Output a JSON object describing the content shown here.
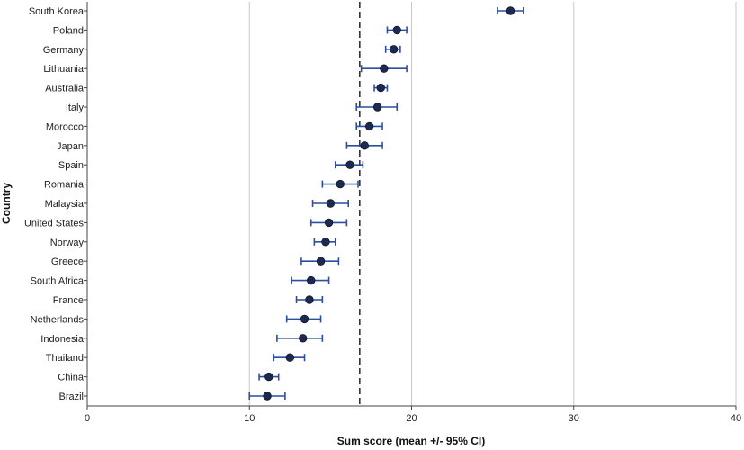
{
  "chart_data": {
    "type": "scatter",
    "xlabel": "Sum score (mean +/- 95% CI)",
    "ylabel": "Country",
    "xlim": [
      0,
      40
    ],
    "xticks": [
      0,
      10,
      20,
      30,
      40
    ],
    "grid": "vertical",
    "reference_line": 16.8,
    "colors": {
      "marker": "#1c2a4f",
      "errorbar": "#2b4ea0",
      "grid": "#c8c8c8",
      "reference": "#333333"
    },
    "categories": [
      "South Korea",
      "Poland",
      "Germany",
      "Lithuania",
      "Australia",
      "Italy",
      "Morocco",
      "Japan",
      "Spain",
      "Romania",
      "Malaysia",
      "United States",
      "Norway",
      "Greece",
      "South Africa",
      "France",
      "Netherlands",
      "Indonesia",
      "Thailand",
      "China",
      "Brazil"
    ],
    "means": [
      26.1,
      19.1,
      18.9,
      18.3,
      18.1,
      17.9,
      17.4,
      17.1,
      16.2,
      15.6,
      15.0,
      14.9,
      14.7,
      14.4,
      13.8,
      13.7,
      13.4,
      13.3,
      12.5,
      11.2,
      11.1
    ],
    "lower": [
      25.3,
      18.5,
      18.4,
      16.9,
      17.7,
      16.6,
      16.6,
      16.0,
      15.3,
      14.5,
      13.9,
      13.8,
      14.0,
      13.2,
      12.6,
      12.9,
      12.3,
      11.7,
      11.5,
      10.6,
      10.0
    ],
    "upper": [
      26.9,
      19.7,
      19.3,
      19.7,
      18.5,
      19.1,
      18.2,
      18.2,
      17.0,
      16.7,
      16.1,
      16.0,
      15.3,
      15.5,
      14.9,
      14.5,
      14.4,
      14.5,
      13.4,
      11.8,
      12.2
    ]
  }
}
